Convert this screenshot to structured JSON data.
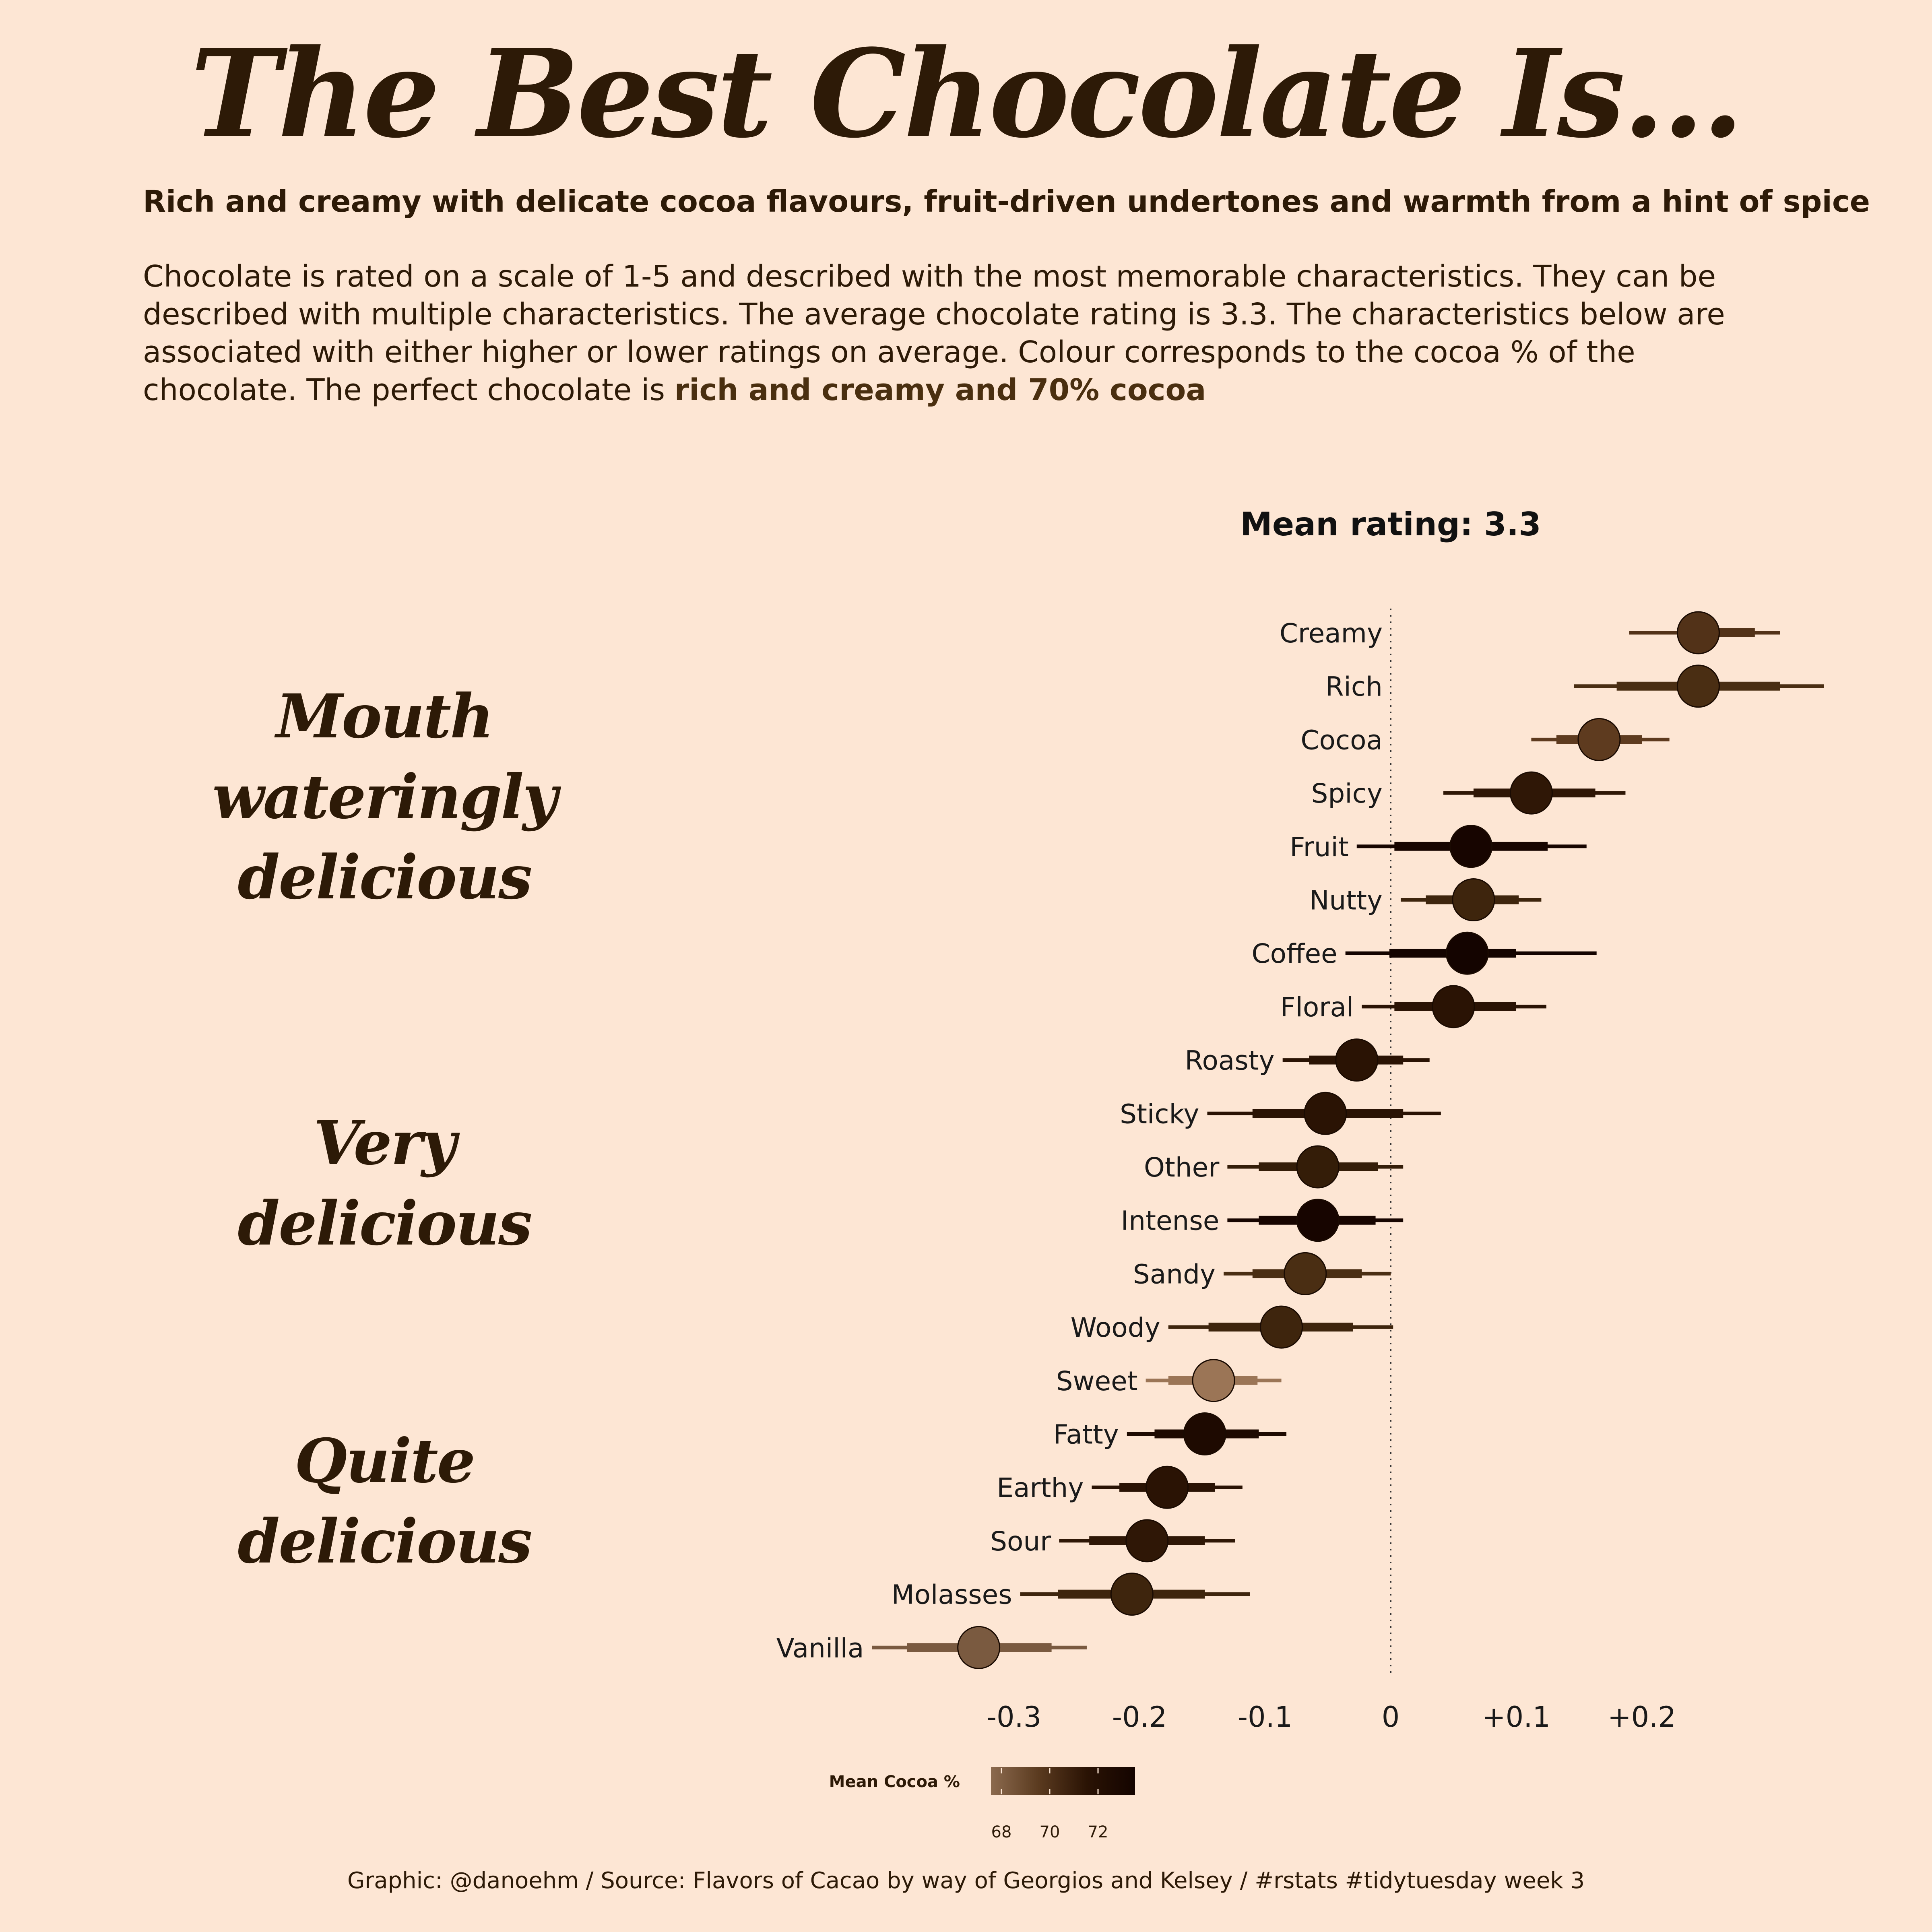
{
  "title": "The Best Chocolate Is...",
  "subtitle": "Rich and creamy with delicate cocoa flavours, fruit-driven undertones and warmth from a hint of spice",
  "description": {
    "text": "Chocolate is rated on a scale of 1-5 and described with the most memorable characteristics. They can be described with multiple characteristics. The average chocolate rating is 3.3. The characteristics below are associated with either higher or lower ratings on average. Colour corresponds to the cocoa % of the chocolate. The perfect chocolate is ",
    "highlight": "rich and creamy and 70% cocoa"
  },
  "tiers": [
    {
      "id": "mouth",
      "line1": "Mouth",
      "line2": "wateringly",
      "line3": "delicious"
    },
    {
      "id": "very",
      "line1": "Very",
      "line2": "delicious"
    },
    {
      "id": "quite",
      "line1": "Quite",
      "line2": "delicious"
    }
  ],
  "footer": "Graphic: @danoehm / Source: Flavors of Cacao by way of Georgios and Kelsey / #rstats #tidytuesday week 3",
  "chart_data": {
    "type": "scatter",
    "title": "Mean rating: 3.3",
    "xlabel": "",
    "ylabel": "",
    "xlim": [
      -0.42,
      0.35
    ],
    "x_ticks": [
      -0.3,
      -0.2,
      -0.1,
      0,
      0.1,
      0.2
    ],
    "x_tick_labels": [
      "-0.3",
      "-0.2",
      "-0.1",
      "0",
      "+0.1",
      "+0.2"
    ],
    "reference_line": 0,
    "points": [
      {
        "label": "Creamy",
        "x": 0.245,
        "inner": [
          0.235,
          0.29
        ],
        "outer": [
          0.19,
          0.31
        ],
        "color": "#523218"
      },
      {
        "label": "Rich",
        "x": 0.245,
        "inner": [
          0.18,
          0.31
        ],
        "outer": [
          0.146,
          0.345
        ],
        "color": "#4a2e13"
      },
      {
        "label": "Cocoa",
        "x": 0.166,
        "inner": [
          0.132,
          0.2
        ],
        "outer": [
          0.112,
          0.222
        ],
        "color": "#5e3b1f"
      },
      {
        "label": "Spicy",
        "x": 0.112,
        "inner": [
          0.066,
          0.163
        ],
        "outer": [
          0.042,
          0.187
        ],
        "color": "#2f1706"
      },
      {
        "label": "Fruit",
        "x": 0.064,
        "inner": [
          0.003,
          0.125
        ],
        "outer": [
          -0.027,
          0.156
        ],
        "color": "#170500"
      },
      {
        "label": "Nutty",
        "x": 0.066,
        "inner": [
          0.028,
          0.102
        ],
        "outer": [
          0.008,
          0.12
        ],
        "color": "#3e250d"
      },
      {
        "label": "Coffee",
        "x": 0.061,
        "inner": [
          -0.001,
          0.1
        ],
        "outer": [
          -0.036,
          0.164
        ],
        "color": "#140400"
      },
      {
        "label": "Floral",
        "x": 0.05,
        "inner": [
          0.003,
          0.1
        ],
        "outer": [
          -0.023,
          0.124
        ],
        "color": "#2a1304"
      },
      {
        "label": "Roasty",
        "x": -0.027,
        "inner": [
          -0.065,
          0.01
        ],
        "outer": [
          -0.086,
          0.031
        ],
        "color": "#2a1304"
      },
      {
        "label": "Sticky",
        "x": -0.052,
        "inner": [
          -0.11,
          0.01
        ],
        "outer": [
          -0.146,
          0.04
        ],
        "color": "#2a1304"
      },
      {
        "label": "Other",
        "x": -0.058,
        "inner": [
          -0.105,
          -0.01
        ],
        "outer": [
          -0.13,
          0.01
        ],
        "color": "#341d08"
      },
      {
        "label": "Intense",
        "x": -0.058,
        "inner": [
          -0.105,
          -0.012
        ],
        "outer": [
          -0.13,
          0.01
        ],
        "color": "#170500"
      },
      {
        "label": "Sandy",
        "x": -0.068,
        "inner": [
          -0.11,
          -0.023
        ],
        "outer": [
          -0.133,
          0.0
        ],
        "color": "#4a2e13"
      },
      {
        "label": "Woody",
        "x": -0.087,
        "inner": [
          -0.145,
          -0.03
        ],
        "outer": [
          -0.177,
          0.002
        ],
        "color": "#3e250d"
      },
      {
        "label": "Sweet",
        "x": -0.141,
        "inner": [
          -0.177,
          -0.106
        ],
        "outer": [
          -0.195,
          -0.087
        ],
        "color": "#9b7556"
      },
      {
        "label": "Fatty",
        "x": -0.148,
        "inner": [
          -0.188,
          -0.105
        ],
        "outer": [
          -0.21,
          -0.083
        ],
        "color": "#1e0a01"
      },
      {
        "label": "Earthy",
        "x": -0.178,
        "inner": [
          -0.216,
          -0.14
        ],
        "outer": [
          -0.238,
          -0.118
        ],
        "color": "#2a1304"
      },
      {
        "label": "Sour",
        "x": -0.194,
        "inner": [
          -0.24,
          -0.148
        ],
        "outer": [
          -0.264,
          -0.124
        ],
        "color": "#2f1706"
      },
      {
        "label": "Molasses",
        "x": -0.206,
        "inner": [
          -0.265,
          -0.148
        ],
        "outer": [
          -0.295,
          -0.112
        ],
        "color": "#3e250d"
      },
      {
        "label": "Vanilla",
        "x": -0.328,
        "inner": [
          -0.385,
          -0.27
        ],
        "outer": [
          -0.413,
          -0.242
        ],
        "color": "#7a5a40"
      }
    ],
    "legend": {
      "title": "Mean Cocoa %",
      "ticks": [
        "68",
        "70",
        "72"
      ],
      "colors": [
        "#8b6a4e",
        "#5a3a1f",
        "#2a1304",
        "#140400"
      ]
    }
  }
}
